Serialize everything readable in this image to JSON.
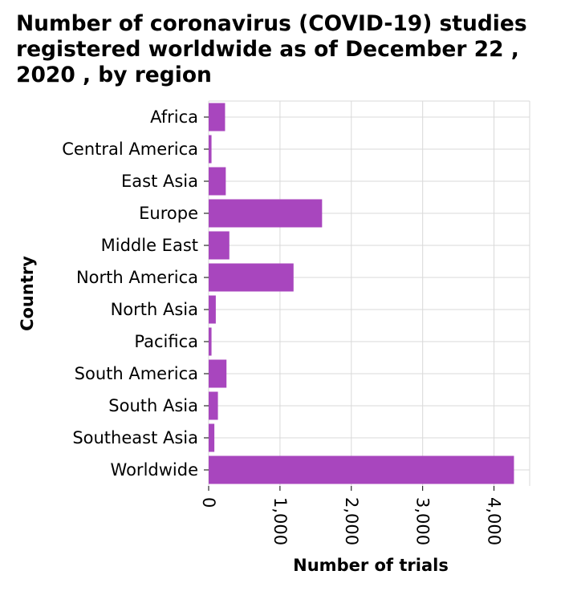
{
  "chart_data": {
    "type": "bar",
    "orientation": "horizontal",
    "title_lines": [
      "Number of coronavirus (COVID-19) studies",
      "registered worldwide as of December 22 ,",
      "2020 , by region"
    ],
    "xlabel": "Number of trials",
    "ylabel": "Country",
    "categories": [
      "Africa",
      "Central America",
      "East Asia",
      "Europe",
      "Middle East",
      "North America",
      "North Asia",
      "Pacifica",
      "South America",
      "South Asia",
      "Southeast Asia",
      "Worldwide"
    ],
    "values": [
      230,
      40,
      240,
      1590,
      290,
      1190,
      100,
      40,
      250,
      130,
      80,
      4280
    ],
    "xticks": [
      0,
      1000,
      2000,
      3000,
      4000
    ],
    "xtick_labels": [
      "0",
      "1,000",
      "2,000",
      "3,000",
      "4,000"
    ],
    "xlim": [
      0,
      4500
    ],
    "grid": true,
    "bar_color": "#a846be",
    "grid_color": "#d9d9d9"
  }
}
